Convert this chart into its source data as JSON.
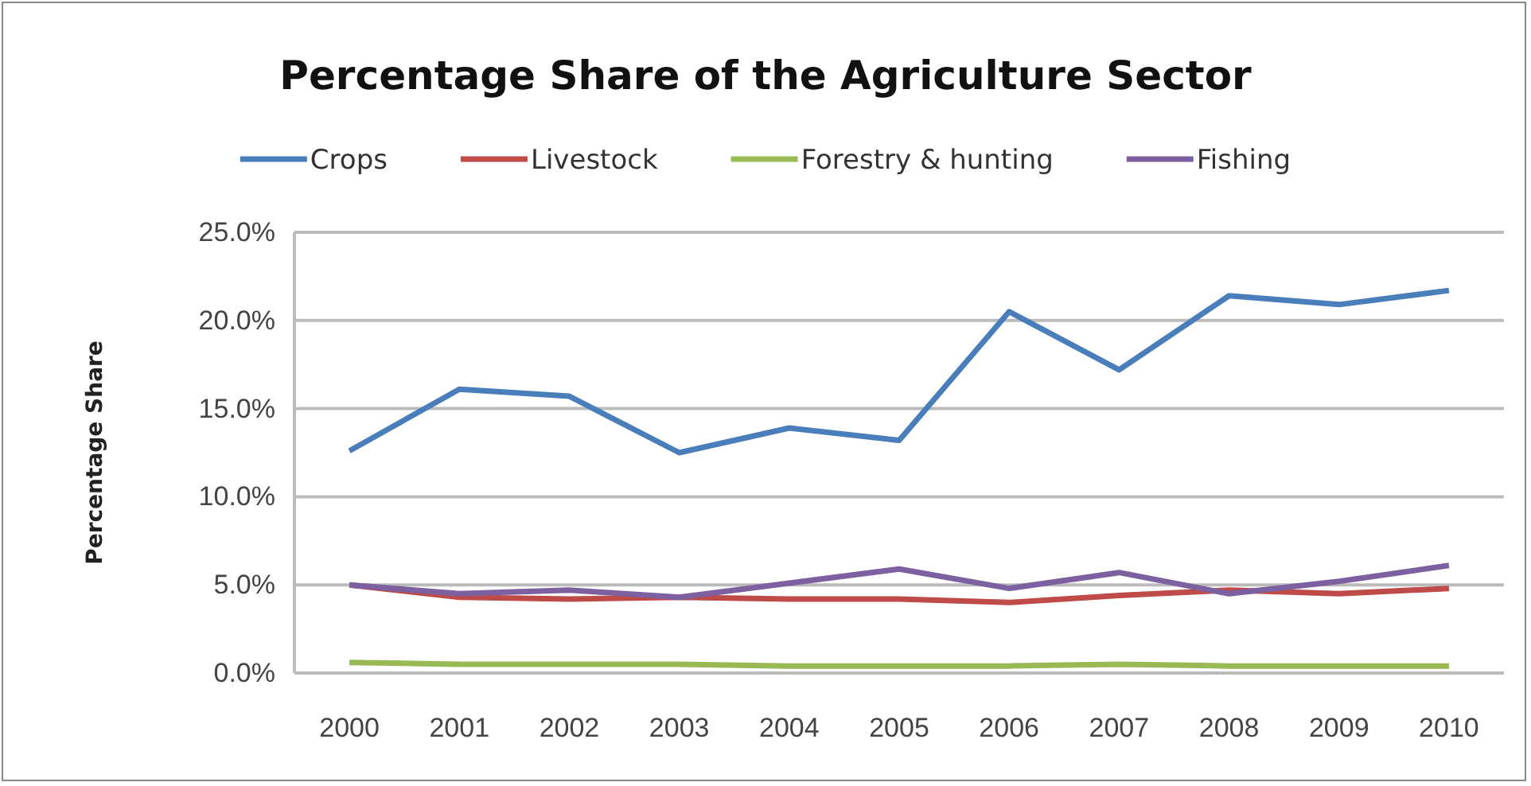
{
  "chart_data": {
    "type": "line",
    "title": "Percentage Share of the Agriculture Sector",
    "ylabel": "Percentage Share",
    "categories": [
      "2000",
      "2001",
      "2002",
      "2003",
      "2004",
      "2005",
      "2006",
      "2007",
      "2008",
      "2009",
      "2010"
    ],
    "series": [
      {
        "name": "Crops",
        "color": "#4a7ebb",
        "values": [
          12.6,
          16.1,
          15.7,
          12.5,
          13.9,
          13.2,
          20.5,
          17.2,
          21.4,
          20.9,
          21.7
        ]
      },
      {
        "name": "Livestock",
        "color": "#be4b48",
        "values": [
          5.0,
          4.3,
          4.2,
          4.3,
          4.2,
          4.2,
          4.0,
          4.4,
          4.7,
          4.5,
          4.8
        ]
      },
      {
        "name": "Forestry & hunting",
        "color": "#98b954",
        "values": [
          0.6,
          0.5,
          0.5,
          0.5,
          0.4,
          0.4,
          0.4,
          0.5,
          0.4,
          0.4,
          0.4
        ]
      },
      {
        "name": "Fishing",
        "color": "#7d60a0",
        "values": [
          5.0,
          4.5,
          4.7,
          4.3,
          5.1,
          5.9,
          4.8,
          5.7,
          4.5,
          5.2,
          6.1
        ]
      }
    ],
    "ylim": [
      0,
      25
    ],
    "yticks": [
      {
        "value": 0,
        "label": "0.0%"
      },
      {
        "value": 5,
        "label": "5.0%"
      },
      {
        "value": 10,
        "label": "10.0%"
      },
      {
        "value": 15,
        "label": "15.0%"
      },
      {
        "value": 20,
        "label": "20.0%"
      },
      {
        "value": 25,
        "label": "25.0%"
      }
    ],
    "grid": "y",
    "legend": "top",
    "marker": "none",
    "line_style": "solid"
  }
}
